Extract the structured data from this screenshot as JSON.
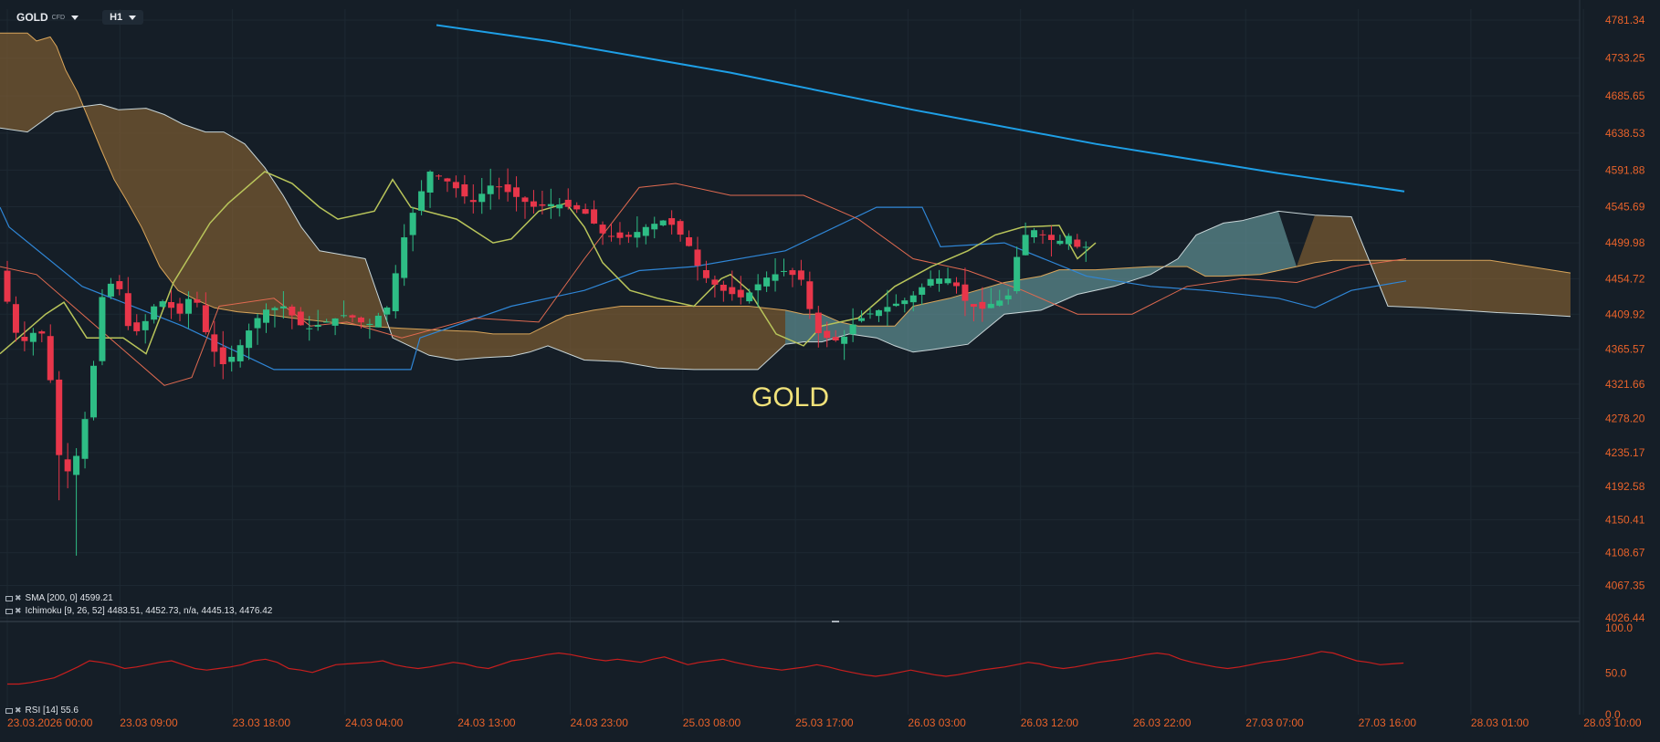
{
  "toolbar": {
    "symbol": "GOLD",
    "symbol_badge": "CFD",
    "timeframe": "H1"
  },
  "watermark": "GOLD",
  "legends": {
    "sma": "SMA [200, 0] 4599.21",
    "ichimoku": "Ichimoku [9, 26, 52] 4483.51, 4452.73, n/a, 4445.13, 4476.42",
    "rsi": "RSI [14] 55.6"
  },
  "price_axis": [
    "4781.34",
    "4733.25",
    "4685.65",
    "4638.53",
    "4591.88",
    "4545.69",
    "4499.98",
    "4454.72",
    "4409.92",
    "4365.57",
    "4321.66",
    "4278.20",
    "4235.17",
    "4192.58",
    "4150.41",
    "4108.67",
    "4067.35",
    "4026.44"
  ],
  "rsi_axis": [
    "100.0",
    "50.0",
    "0.0"
  ],
  "time_axis": [
    "23.03.2026 00:00",
    "23.03 09:00",
    "23.03 18:00",
    "24.03 04:00",
    "24.03 13:00",
    "24.03 23:00",
    "25.03 08:00",
    "25.03 17:00",
    "26.03 03:00",
    "26.03 12:00",
    "26.03 22:00",
    "27.03 07:00",
    "27.03 16:00",
    "28.03 01:00",
    "28.03 10:00"
  ],
  "colors": {
    "background": "#151e27",
    "bull": "#2ebd85",
    "bear": "#e8364a",
    "sma": "#1e9fe6",
    "tenkan": "#e06a50",
    "kijun": "#2f86d6",
    "chikou": "#b8c45a",
    "kumo_bear": "#7a5a32",
    "kumo_bull": "#5e8e92",
    "rsi": "#c81e1e",
    "axis_text": "#e8622a"
  }
}
